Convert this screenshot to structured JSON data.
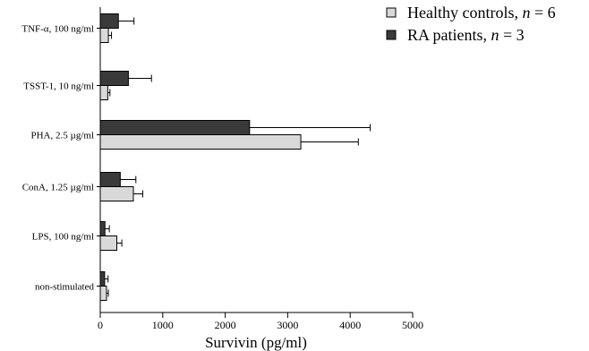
{
  "chart_data": {
    "type": "bar",
    "orientation": "horizontal",
    "categories": [
      "TNF-α, 100 ng/ml",
      "TSST-1, 10 ng/ml",
      "PHA, 2.5 µg/ml",
      "ConA, 1.25 µg/ml",
      "LPS, 100 ng/ml",
      "non-stimulated"
    ],
    "series": [
      {
        "name": "Healthy controls, n = 6",
        "legend_text": "Healthy controls, ",
        "legend_n": "n",
        "legend_value": " = 6",
        "color": "#d9d9d9",
        "values": [
          130,
          120,
          3210,
          530,
          265,
          100
        ],
        "errors": [
          50,
          35,
          920,
          150,
          80,
          30
        ]
      },
      {
        "name": "RA patients, n = 3",
        "legend_text": "RA patients, ",
        "legend_n": "n",
        "legend_value": " = 3",
        "color": "#3a3a3a",
        "values": [
          290,
          450,
          2390,
          320,
          75,
          70
        ],
        "errors": [
          250,
          370,
          1930,
          250,
          70,
          55
        ]
      }
    ],
    "xlabel": "Survivin (pg/ml)",
    "ylabel": "",
    "xlim": [
      0,
      5000
    ],
    "xticks": [
      "0",
      "1000",
      "2000",
      "3000",
      "4000",
      "5000"
    ],
    "grid": false,
    "legend_position": "top-right"
  }
}
